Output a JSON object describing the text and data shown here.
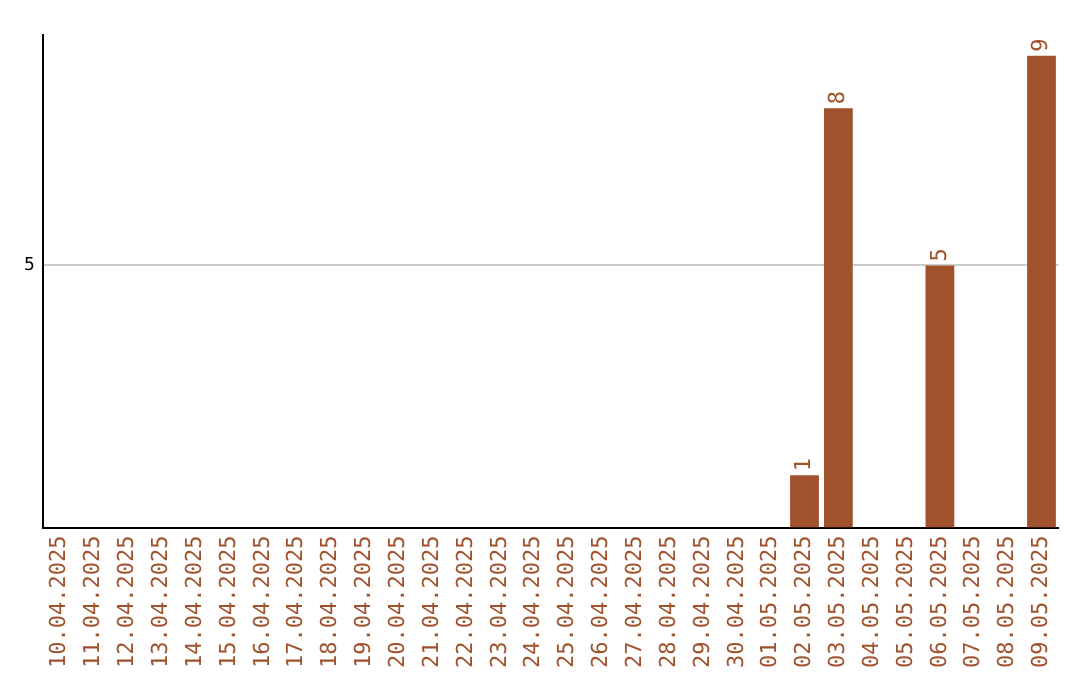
{
  "chart_data": {
    "type": "bar",
    "categories": [
      "10.04.2025",
      "11.04.2025",
      "12.04.2025",
      "13.04.2025",
      "14.04.2025",
      "15.04.2025",
      "16.04.2025",
      "17.04.2025",
      "18.04.2025",
      "19.04.2025",
      "20.04.2025",
      "21.04.2025",
      "22.04.2025",
      "23.04.2025",
      "24.04.2025",
      "25.04.2025",
      "26.04.2025",
      "27.04.2025",
      "28.04.2025",
      "29.04.2025",
      "30.04.2025",
      "01.05.2025",
      "02.05.2025",
      "03.05.2025",
      "04.05.2025",
      "05.05.2025",
      "06.05.2025",
      "07.05.2025",
      "08.05.2025",
      "09.05.2025"
    ],
    "values": [
      null,
      null,
      null,
      null,
      null,
      null,
      null,
      null,
      null,
      null,
      null,
      null,
      null,
      null,
      null,
      null,
      null,
      null,
      null,
      null,
      null,
      null,
      1,
      8,
      null,
      null,
      5,
      null,
      null,
      9
    ],
    "color": "#a0522d",
    "ylim": [
      0,
      9.4
    ],
    "yticks": [
      5
    ],
    "grid": "y",
    "data_labels": true,
    "legend": false
  }
}
